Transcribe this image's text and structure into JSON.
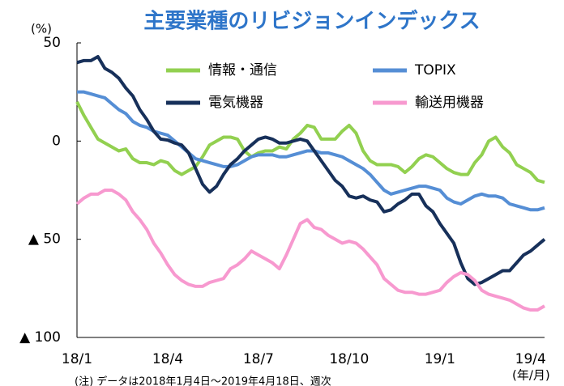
{
  "chart_data": {
    "type": "line",
    "title": "主要業種のリビジョンインデックス",
    "y_unit": "(%)",
    "x_unit": "(年/月)",
    "note": "(注) データは2018年1月4日～2019年4月18日、週次",
    "categories": [
      "18/1",
      null,
      null,
      null,
      null,
      null,
      null,
      null,
      null,
      null,
      null,
      null,
      null,
      "18/4",
      null,
      null,
      null,
      null,
      null,
      null,
      null,
      null,
      null,
      null,
      null,
      null,
      "18/7",
      null,
      null,
      null,
      null,
      null,
      null,
      null,
      null,
      null,
      null,
      null,
      null,
      "18/10",
      null,
      null,
      null,
      null,
      null,
      null,
      null,
      null,
      null,
      null,
      null,
      null,
      "19/1",
      null,
      null,
      null,
      null,
      null,
      null,
      null,
      null,
      null,
      null,
      null,
      null,
      "19/4",
      null,
      null
    ],
    "series": [
      {
        "name": "情報・通信",
        "color": "#92d050",
        "values": [
          20,
          13,
          7,
          1,
          -1,
          -3,
          -5,
          -4,
          -9,
          -11,
          -11,
          -12,
          -10,
          -11,
          -15,
          -17,
          -15,
          -13,
          -8,
          -2,
          0,
          2,
          2,
          1,
          -5,
          -8,
          -6,
          -5,
          -5,
          -3,
          -4,
          1,
          4,
          8,
          7,
          1,
          1,
          1,
          5,
          8,
          4,
          -5,
          -10,
          -12,
          -12,
          -12,
          -13,
          -16,
          -13,
          -9,
          -7,
          -8,
          -11,
          -14,
          -16,
          -17,
          -17,
          -11,
          -7,
          0,
          2,
          -3,
          -6,
          -12,
          -14,
          -16,
          -20,
          -21
        ]
      },
      {
        "name": "TOPIX",
        "color": "#558ed5",
        "values": [
          25,
          25,
          24,
          23,
          22,
          19,
          16,
          14,
          10,
          8,
          7,
          5,
          4,
          3,
          0,
          -3,
          -6,
          -9,
          -10,
          -11,
          -12,
          -13,
          -13,
          -12,
          -10,
          -8,
          -7,
          -7,
          -7,
          -8,
          -8,
          -7,
          -6,
          -5,
          -5,
          -6,
          -6,
          -7,
          -8,
          -10,
          -12,
          -14,
          -17,
          -21,
          -25,
          -27,
          -26,
          -25,
          -24,
          -23,
          -23,
          -24,
          -25,
          -29,
          -31,
          -32,
          -30,
          -28,
          -27,
          -28,
          -28,
          -29,
          -32,
          -33,
          -34,
          -35,
          -35,
          -34
        ]
      },
      {
        "name": "電気機器",
        "color": "#17305a",
        "values": [
          40,
          41,
          41,
          43,
          37,
          35,
          32,
          27,
          23,
          16,
          11,
          5,
          1,
          0.5,
          -1,
          -2,
          -6,
          -14,
          -22,
          -26,
          -23,
          -17,
          -12,
          -9,
          -5,
          -2,
          1,
          2,
          1,
          -1,
          -1,
          0,
          1,
          0,
          -5,
          -10,
          -15,
          -20,
          -23,
          -28,
          -29,
          -28,
          -30,
          -31,
          -36,
          -35,
          -32,
          -30,
          -27,
          -27,
          -33,
          -36,
          -42,
          -47,
          -52,
          -62,
          -70,
          -73,
          -72,
          -70,
          -68,
          -66,
          -66,
          -62,
          -58,
          -56,
          -53,
          -50
        ]
      },
      {
        "name": "輸送用機器",
        "color": "#f799cf",
        "values": [
          -32,
          -29,
          -27,
          -27,
          -25,
          -25,
          -27,
          -30,
          -36,
          -40,
          -45,
          -52,
          -57,
          -63,
          -68,
          -71,
          -73,
          -74,
          -74,
          -72,
          -71,
          -70,
          -65,
          -63,
          -60,
          -56,
          -58,
          -60,
          -62,
          -65,
          -58,
          -50,
          -42,
          -40,
          -44,
          -45,
          -48,
          -50,
          -52,
          -51,
          -52,
          -55,
          -59,
          -63,
          -70,
          -73,
          -76,
          -77,
          -77,
          -78,
          -78,
          -77,
          -76,
          -72,
          -69,
          -67,
          -68,
          -71,
          -76,
          -78,
          -79,
          -80,
          -81,
          -83,
          -85,
          -86,
          -86,
          -84
        ]
      }
    ],
    "ylim": [
      -100,
      50
    ],
    "yticks": [
      50,
      0,
      {
        "value": -50,
        "label": "▲ 50"
      },
      {
        "value": -100,
        "label": "▲ 100"
      }
    ],
    "grid": false,
    "legend": "top"
  }
}
